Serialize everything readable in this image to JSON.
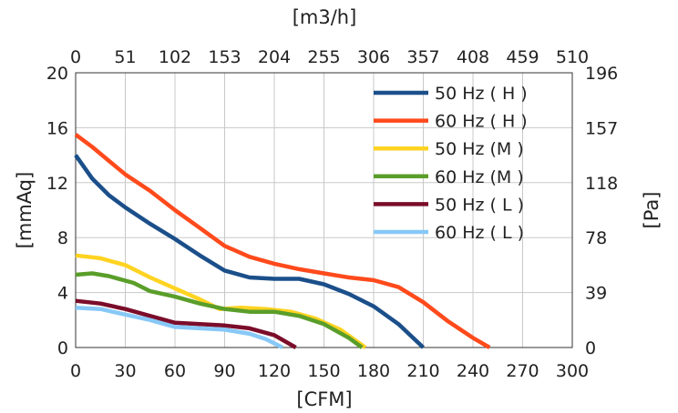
{
  "chart_data": {
    "type": "line",
    "xlabel": "[CFM]",
    "x2label": "[m3/h]",
    "ylabel": "[mmAq]",
    "y2label": "[Pa]",
    "xlim": [
      0,
      300
    ],
    "ylim": [
      0,
      20
    ],
    "grid": true,
    "legend_position": "top-right",
    "x_ticks": [
      "0",
      "30",
      "60",
      "90",
      "120",
      "150",
      "180",
      "210",
      "240",
      "270",
      "300"
    ],
    "x2_ticks": [
      "0",
      "51",
      "102",
      "153",
      "204",
      "255",
      "306",
      "357",
      "408",
      "459",
      "510"
    ],
    "y_ticks": [
      "0",
      "4",
      "8",
      "12",
      "16",
      "20"
    ],
    "y2_ticks": [
      "0",
      "39",
      "78",
      "118",
      "157",
      "196"
    ],
    "series": [
      {
        "name": "50 Hz ( H )",
        "color": "#1b4f8a",
        "points": [
          [
            0,
            14.0
          ],
          [
            10,
            12.3
          ],
          [
            20,
            11.1
          ],
          [
            30,
            10.2
          ],
          [
            45,
            9.0
          ],
          [
            60,
            7.9
          ],
          [
            75,
            6.7
          ],
          [
            90,
            5.6
          ],
          [
            105,
            5.1
          ],
          [
            120,
            5.0
          ],
          [
            135,
            5.0
          ],
          [
            150,
            4.6
          ],
          [
            165,
            3.9
          ],
          [
            180,
            3.0
          ],
          [
            195,
            1.7
          ],
          [
            210,
            0.0
          ]
        ]
      },
      {
        "name": "60 Hz ( H )",
        "color": "#ff4a1c",
        "points": [
          [
            0,
            15.5
          ],
          [
            10,
            14.6
          ],
          [
            20,
            13.6
          ],
          [
            30,
            12.6
          ],
          [
            45,
            11.4
          ],
          [
            60,
            10.0
          ],
          [
            75,
            8.7
          ],
          [
            90,
            7.4
          ],
          [
            105,
            6.6
          ],
          [
            120,
            6.1
          ],
          [
            135,
            5.7
          ],
          [
            150,
            5.4
          ],
          [
            165,
            5.1
          ],
          [
            180,
            4.9
          ],
          [
            195,
            4.4
          ],
          [
            210,
            3.3
          ],
          [
            225,
            1.9
          ],
          [
            240,
            0.7
          ],
          [
            250,
            0.0
          ]
        ]
      },
      {
        "name": "50 Hz (M )",
        "color": "#ffd321",
        "points": [
          [
            0,
            6.7
          ],
          [
            15,
            6.5
          ],
          [
            30,
            6.0
          ],
          [
            45,
            5.1
          ],
          [
            60,
            4.3
          ],
          [
            75,
            3.5
          ],
          [
            87,
            2.8
          ],
          [
            100,
            2.9
          ],
          [
            115,
            2.8
          ],
          [
            130,
            2.6
          ],
          [
            145,
            2.1
          ],
          [
            160,
            1.3
          ],
          [
            175,
            0.0
          ]
        ]
      },
      {
        "name": "60 Hz (M )",
        "color": "#5a9e2a",
        "points": [
          [
            0,
            5.3
          ],
          [
            10,
            5.4
          ],
          [
            20,
            5.2
          ],
          [
            35,
            4.7
          ],
          [
            45,
            4.1
          ],
          [
            60,
            3.7
          ],
          [
            75,
            3.2
          ],
          [
            90,
            2.8
          ],
          [
            105,
            2.6
          ],
          [
            120,
            2.6
          ],
          [
            135,
            2.3
          ],
          [
            150,
            1.7
          ],
          [
            165,
            0.7
          ],
          [
            173,
            0.0
          ]
        ]
      },
      {
        "name": "50 Hz ( L )",
        "color": "#7b0d2a",
        "points": [
          [
            0,
            3.4
          ],
          [
            15,
            3.2
          ],
          [
            30,
            2.8
          ],
          [
            45,
            2.3
          ],
          [
            60,
            1.8
          ],
          [
            75,
            1.7
          ],
          [
            90,
            1.6
          ],
          [
            105,
            1.4
          ],
          [
            120,
            0.9
          ],
          [
            133,
            0.0
          ]
        ]
      },
      {
        "name": "60 Hz ( L )",
        "color": "#87c8f7",
        "points": [
          [
            0,
            2.9
          ],
          [
            15,
            2.8
          ],
          [
            30,
            2.4
          ],
          [
            45,
            2.0
          ],
          [
            60,
            1.5
          ],
          [
            75,
            1.4
          ],
          [
            90,
            1.3
          ],
          [
            105,
            1.0
          ],
          [
            115,
            0.6
          ],
          [
            125,
            0.0
          ]
        ]
      }
    ]
  }
}
